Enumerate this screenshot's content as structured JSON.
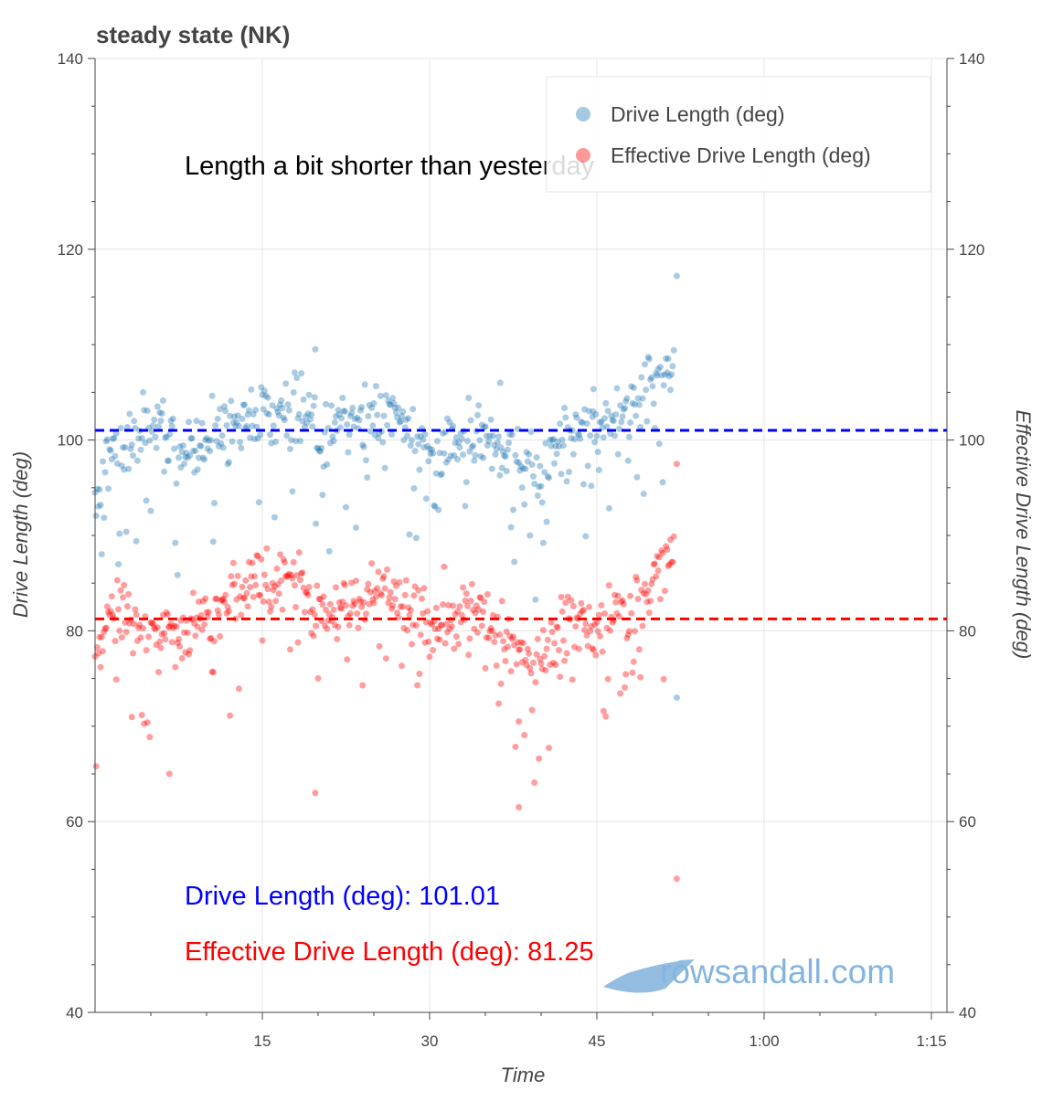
{
  "chart_data": {
    "type": "scatter",
    "title": "steady state (NK)",
    "xlabel": "Time",
    "ylabel": "Drive Length (deg)",
    "y2label": "Effective Drive Length (deg)",
    "xlim": [
      0,
      1530
    ],
    "ylim": [
      40,
      140
    ],
    "x_ticks": [
      {
        "value": 900,
        "label": "15"
      },
      {
        "value": 1800,
        "label": "30"
      },
      {
        "value": 2700,
        "label": "45"
      },
      {
        "value": 3600,
        "label": "1:00"
      },
      {
        "value": 4500,
        "label": "1:15"
      }
    ],
    "x_range_seconds": [
      0,
      4600
    ],
    "y_ticks": [
      40,
      60,
      80,
      100,
      120,
      140
    ],
    "grid": true,
    "legend_position": "top-right",
    "annotation": "Length a bit shorter than yesterday",
    "series": [
      {
        "name": "Drive Length (deg)",
        "color": "#1f77b4",
        "mean_line": 101.01,
        "mean_line_color": "#0000ff",
        "mean_label": "Drive Length (deg): 101.01",
        "duration_seconds": 3120,
        "profile": [
          [
            0,
            93
          ],
          [
            100,
            100
          ],
          [
            300,
            101
          ],
          [
            500,
            99
          ],
          [
            700,
            101
          ],
          [
            900,
            103
          ],
          [
            1100,
            103.5
          ],
          [
            1200,
            101
          ],
          [
            1400,
            102
          ],
          [
            1600,
            103.5
          ],
          [
            1800,
            98.5
          ],
          [
            2000,
            100.5
          ],
          [
            2200,
            99
          ],
          [
            2400,
            96
          ],
          [
            2550,
            102
          ],
          [
            2700,
            101
          ],
          [
            2900,
            103.5
          ],
          [
            3050,
            107
          ],
          [
            3120,
            108
          ]
        ],
        "outliers": [
          [
            1185,
            109.5
          ],
          [
            3130,
            117.2
          ],
          [
            2180,
            106
          ],
          [
            2680,
            103
          ],
          [
            3130,
            73
          ]
        ]
      },
      {
        "name": "Effective Drive Length (deg)",
        "color": "#ff0000",
        "mean_line": 81.25,
        "mean_line_color": "#ff0000",
        "mean_label": "Effective Drive Length (deg): 81.25",
        "duration_seconds": 3120,
        "profile": [
          [
            0,
            78
          ],
          [
            100,
            82
          ],
          [
            300,
            80
          ],
          [
            500,
            80
          ],
          [
            700,
            83
          ],
          [
            900,
            85.5
          ],
          [
            1100,
            86
          ],
          [
            1200,
            81
          ],
          [
            1400,
            83
          ],
          [
            1600,
            84
          ],
          [
            1800,
            80.5
          ],
          [
            2000,
            82
          ],
          [
            2200,
            79
          ],
          [
            2400,
            76
          ],
          [
            2550,
            82
          ],
          [
            2700,
            80
          ],
          [
            2900,
            82.5
          ],
          [
            3050,
            86.5
          ],
          [
            3120,
            88.5
          ]
        ],
        "outliers": [
          [
            1185,
            63
          ],
          [
            2280,
            61.5
          ],
          [
            3130,
            54
          ],
          [
            3130,
            97.5
          ],
          [
            400,
            65
          ],
          [
            2280,
            70.5
          ]
        ]
      }
    ]
  },
  "watermark": "rowsandall.com"
}
